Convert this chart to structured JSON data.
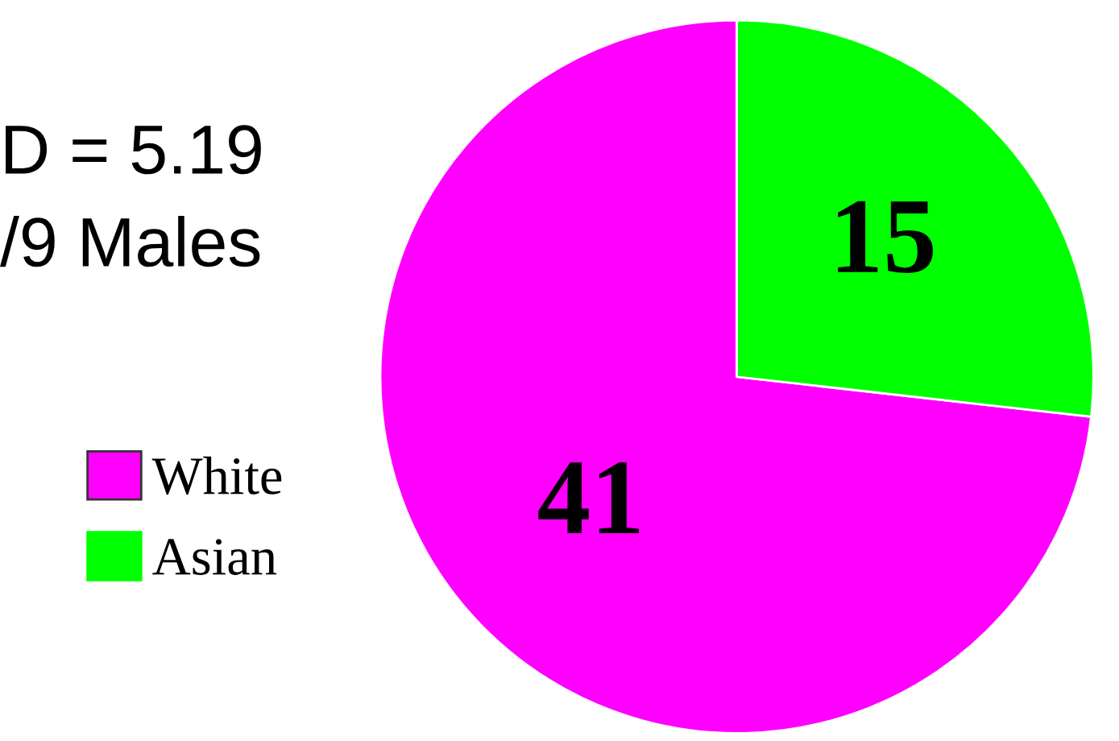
{
  "chart_data": {
    "type": "pie",
    "categories": [
      "White",
      "Asian"
    ],
    "values": [
      41,
      15
    ],
    "colors": [
      "#ff00ff",
      "#00ff00"
    ],
    "data_labels": true,
    "legend": "left",
    "annotations": [
      "D = 5.19",
      "/9 Males"
    ]
  }
}
